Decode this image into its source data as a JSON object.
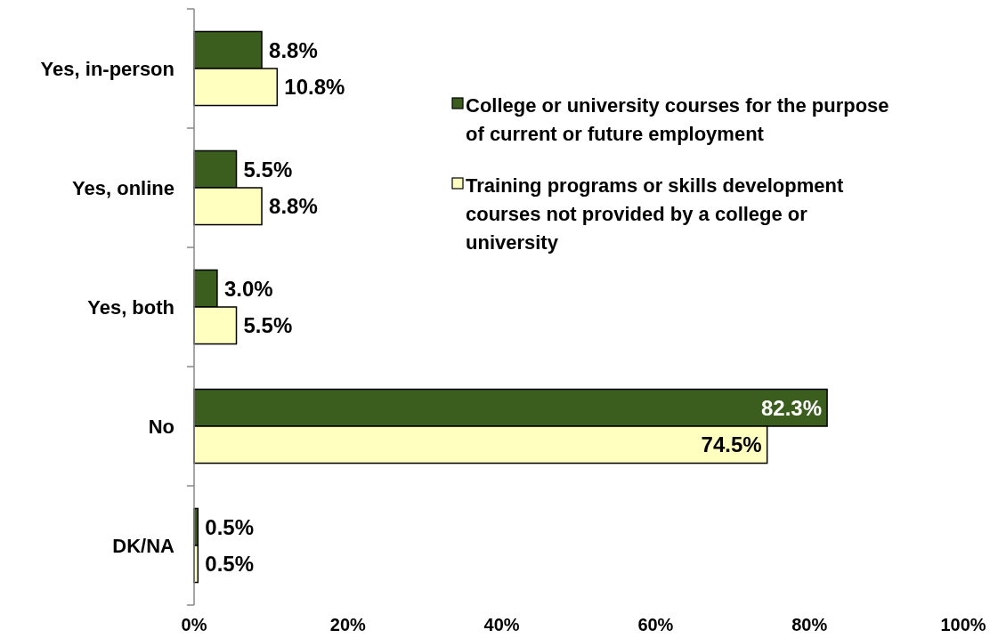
{
  "chart_data": {
    "type": "bar",
    "orientation": "horizontal",
    "categories": [
      "Yes, in-person",
      "Yes, online",
      "Yes, both",
      "No",
      "DK/NA"
    ],
    "series": [
      {
        "name": "College or university courses for the purpose of current or future employment",
        "color": "#3b5e1e",
        "values": [
          8.8,
          5.5,
          3.0,
          82.3,
          0.5
        ],
        "value_labels": [
          "8.8%",
          "5.5%",
          "3.0%",
          "82.3%",
          "0.5%"
        ]
      },
      {
        "name": "Training programs or skills development courses not provided by a college or university",
        "color": "#ffffc0",
        "values": [
          10.8,
          8.8,
          5.5,
          74.5,
          0.5
        ],
        "value_labels": [
          "10.8%",
          "8.8%",
          "5.5%",
          "74.5%",
          "0.5%"
        ]
      }
    ],
    "xlim": [
      0,
      100
    ],
    "xticks": [
      {
        "value": 0,
        "label": "0%"
      },
      {
        "value": 20,
        "label": "20%"
      },
      {
        "value": 40,
        "label": "40%"
      },
      {
        "value": 60,
        "label": "60%"
      },
      {
        "value": 80,
        "label": "80%"
      },
      {
        "value": 100,
        "label": "100%"
      }
    ],
    "legend": "top right",
    "grid": false
  }
}
